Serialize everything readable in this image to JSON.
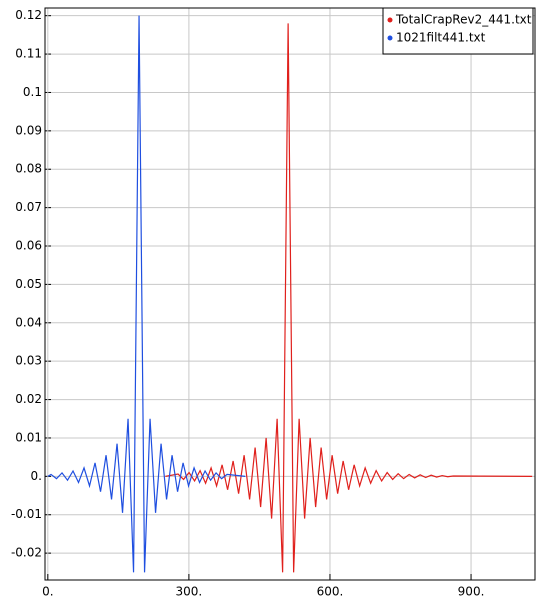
{
  "chart_data": {
    "type": "line",
    "xlim": [
      -6,
      1036
    ],
    "ylim": [
      -0.027,
      0.122
    ],
    "xticks": [
      {
        "value": 0,
        "label": "0."
      },
      {
        "value": 300,
        "label": "300."
      },
      {
        "value": 600,
        "label": "600."
      },
      {
        "value": 900,
        "label": "900."
      }
    ],
    "yticks": [
      -0.02,
      -0.01,
      {
        "value": 0,
        "label": "0."
      },
      0.01,
      0.02,
      0.03,
      0.04,
      0.05,
      0.06,
      0.07,
      0.08,
      0.09,
      0.1,
      0.11,
      0.12
    ],
    "grid": true,
    "legend": "top-right",
    "series": [
      {
        "name": "TotalCrapRev2_441.txt",
        "color": "#e0201c",
        "x": [
          250,
          277,
          288.7,
          300.4,
          312.1,
          323.8,
          335.5,
          347.2,
          358.9,
          370.6,
          382.3,
          394,
          405.7,
          417.4,
          429.1,
          440.8,
          452.5,
          464.2,
          475.9,
          487.6,
          499.3,
          511,
          522.7,
          534.4,
          546.1,
          557.8,
          569.5,
          581.2,
          592.9,
          604.6,
          616.3,
          628,
          639.7,
          651.4,
          663.1,
          674.8,
          686.5,
          698.2,
          709.9,
          721.6,
          733.3,
          745,
          756.7,
          768.4,
          780.1,
          791.8,
          803.5,
          815.2,
          826.9,
          838.6,
          850.3,
          862,
          1030
        ],
        "values": [
          0,
          0.0006,
          -0.0008,
          0.001,
          -0.0012,
          0.0015,
          -0.0018,
          0.0022,
          -0.0025,
          0.003,
          -0.0035,
          0.004,
          -0.0045,
          0.0055,
          -0.006,
          0.0075,
          -0.008,
          0.01,
          -0.011,
          0.015,
          -0.025,
          0.118,
          -0.025,
          0.015,
          -0.011,
          0.01,
          -0.008,
          0.0075,
          -0.006,
          0.0055,
          -0.0045,
          0.004,
          -0.0035,
          0.003,
          -0.0025,
          0.0022,
          -0.0018,
          0.0015,
          -0.0012,
          0.001,
          -0.0008,
          0.0007,
          -0.0006,
          0.0005,
          -0.0004,
          0.0004,
          -0.0003,
          0.0003,
          -0.0002,
          0.0002,
          -0.0001,
          0.0001,
          0
        ]
      },
      {
        "name": "1021filt441.txt",
        "color": "#1f4fe0",
        "x": [
          0,
          6.8,
          18.5,
          30.2,
          41.9,
          53.6,
          65.3,
          77,
          88.7,
          100.4,
          112.1,
          123.8,
          135.5,
          147.2,
          158.9,
          170.6,
          182.3,
          194,
          205.7,
          217.4,
          229.1,
          240.8,
          252.5,
          264.2,
          275.9,
          287.6,
          299.3,
          311,
          322.7,
          334.4,
          346.1,
          357.8,
          369.5,
          381.2,
          420
        ],
        "values": [
          0,
          0.0005,
          -0.0006,
          0.0009,
          -0.001,
          0.0014,
          -0.0016,
          0.0022,
          -0.0025,
          0.0035,
          -0.004,
          0.0055,
          -0.006,
          0.0085,
          -0.0095,
          0.015,
          -0.025,
          0.12,
          -0.025,
          0.015,
          -0.0095,
          0.0085,
          -0.006,
          0.0055,
          -0.004,
          0.0035,
          -0.0025,
          0.0022,
          -0.0016,
          0.0014,
          -0.001,
          0.0009,
          -0.0006,
          0.0005,
          0
        ]
      }
    ]
  }
}
